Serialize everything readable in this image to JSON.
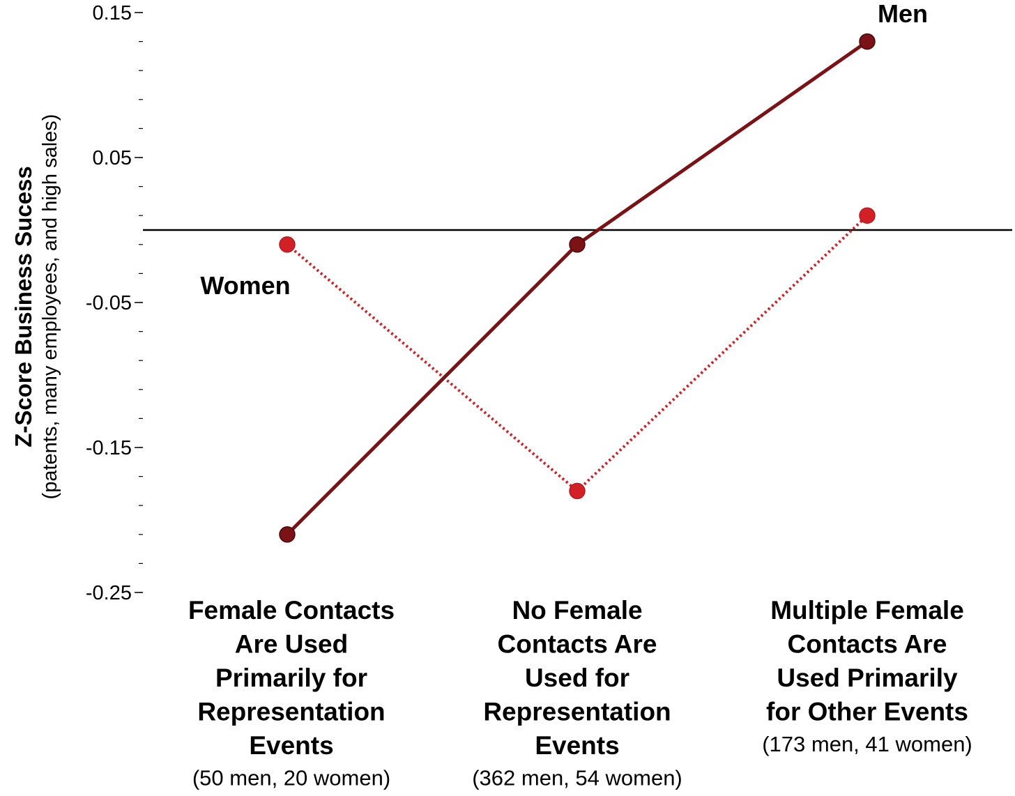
{
  "chart_data": {
    "type": "line",
    "title": "",
    "ylabel": "Z-Score Business Sucess",
    "ylabel_sub": "(patents, many employees, and high sales)",
    "ylim": [
      -0.25,
      0.15
    ],
    "yticks": [
      {
        "value": 0.15,
        "label": "0.15"
      },
      {
        "value": 0.05,
        "label": "0.05"
      },
      {
        "value": -0.05,
        "label": "-0.05"
      },
      {
        "value": -0.15,
        "label": "-0.15"
      },
      {
        "value": -0.25,
        "label": "-0.25"
      }
    ],
    "minor_tick_step": 0.02,
    "reference_line": 0,
    "grid": false,
    "categories": [
      {
        "lines": [
          "Female Contacts",
          "Are Used",
          "Primarily for",
          "Representation",
          "Events"
        ],
        "note": "(50 men, 20 women)"
      },
      {
        "lines": [
          "No Female",
          "Contacts Are",
          "Used for",
          "Representation",
          "Events"
        ],
        "note": "(362 men, 54 women)"
      },
      {
        "lines": [
          "Multiple Female",
          "Contacts Are",
          "Used Primarily",
          "for Other Events"
        ],
        "note": "(173 men, 41 women)"
      }
    ],
    "series": [
      {
        "name": "Men",
        "values": [
          -0.21,
          -0.01,
          0.13
        ],
        "color": "#7a1216",
        "style": "solid"
      },
      {
        "name": "Women",
        "values": [
          -0.01,
          -0.18,
          0.01
        ],
        "color": "#d12127",
        "style": "dotted"
      }
    ]
  }
}
